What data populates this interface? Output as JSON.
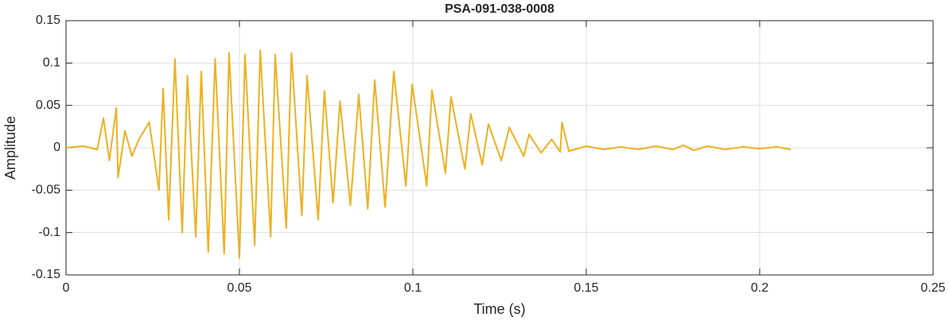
{
  "chart_data": {
    "type": "line",
    "title": "PSA-091-038-0008",
    "xlabel": "Time (s)",
    "ylabel": "Amplitude",
    "series": [
      {
        "name": null,
        "color": "#edb120",
        "x": [
          0,
          0.005,
          0.009,
          0.0108,
          0.0125,
          0.0145,
          0.015,
          0.017,
          0.019,
          0.021,
          0.024,
          0.0268,
          0.028,
          0.0296,
          0.0314,
          0.0335,
          0.035,
          0.0374,
          0.039,
          0.041,
          0.043,
          0.0456,
          0.047,
          0.05,
          0.0516,
          0.0544,
          0.056,
          0.059,
          0.0603,
          0.0635,
          0.065,
          0.068,
          0.0695,
          0.0727,
          0.0745,
          0.077,
          0.079,
          0.082,
          0.0844,
          0.087,
          0.089,
          0.092,
          0.0945,
          0.098,
          0.0998,
          0.104,
          0.1055,
          0.1094,
          0.111,
          0.115,
          0.1167,
          0.12,
          0.1218,
          0.1255,
          0.1278,
          0.132,
          0.1335,
          0.137,
          0.14,
          0.1425,
          0.143,
          0.145,
          0.15,
          0.155,
          0.16,
          0.165,
          0.17,
          0.175,
          0.178,
          0.181,
          0.185,
          0.19,
          0.195,
          0.2,
          0.205,
          0.209
        ],
        "values": [
          0,
          0.002,
          -0.002,
          0.035,
          -0.015,
          0.047,
          -0.035,
          0.02,
          -0.01,
          0.01,
          0.03,
          -0.05,
          0.07,
          -0.085,
          0.105,
          -0.1,
          0.085,
          -0.105,
          0.09,
          -0.123,
          0.105,
          -0.125,
          0.112,
          -0.13,
          0.11,
          -0.115,
          0.115,
          -0.105,
          0.11,
          -0.095,
          0.112,
          -0.08,
          0.085,
          -0.085,
          0.067,
          -0.065,
          0.055,
          -0.068,
          0.063,
          -0.072,
          0.08,
          -0.07,
          0.09,
          -0.045,
          0.075,
          -0.045,
          0.068,
          -0.03,
          0.06,
          -0.025,
          0.04,
          -0.02,
          0.028,
          -0.015,
          0.024,
          -0.01,
          0.016,
          -0.006,
          0.01,
          -0.005,
          0.03,
          -0.004,
          0.002,
          -0.002,
          0.001,
          -0.002,
          0.002,
          -0.002,
          0.003,
          -0.003,
          0.002,
          -0.002,
          0.001,
          -0.001,
          0.001,
          -0.002
        ]
      }
    ],
    "xlim": [
      0,
      0.25
    ],
    "xticks": [
      0,
      0.05,
      0.1,
      0.15,
      0.2,
      0.25
    ],
    "ylim": [
      -0.15,
      0.15
    ],
    "yticks": [
      -0.15,
      -0.1,
      -0.05,
      0,
      0.05,
      0.1,
      0.15
    ],
    "grid": true
  }
}
